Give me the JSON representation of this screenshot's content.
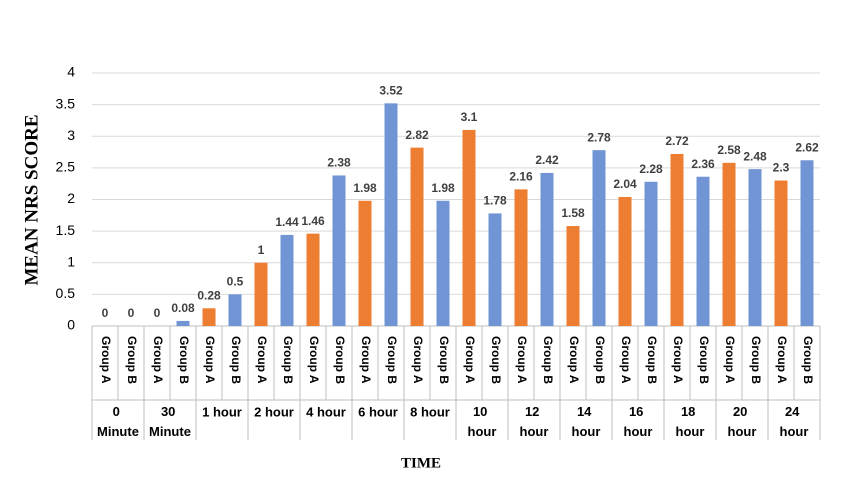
{
  "chart_data": {
    "type": "bar",
    "x_label": "TIME",
    "y_label": "MEAN NRS SCORE",
    "categories": [
      "0 Minute",
      "30 Minute",
      "1 hour",
      "2 hour",
      "4 hour",
      "6 hour",
      "8 hour",
      "10 hour",
      "12 hour",
      "14 hour",
      "16 hour",
      "18 hour",
      "20 hour",
      "24 hour"
    ],
    "series": [
      {
        "name": "Group A",
        "color": "#ed7d31",
        "values": [
          0,
          0,
          0.28,
          1,
          1.46,
          1.98,
          2.82,
          3.1,
          2.16,
          1.58,
          2.04,
          2.72,
          2.58,
          2.3
        ]
      },
      {
        "name": "Group B",
        "color": "#7094d4",
        "values": [
          0,
          0.08,
          0.5,
          1.44,
          2.38,
          3.52,
          1.98,
          1.78,
          2.42,
          2.78,
          2.28,
          2.36,
          2.48,
          2.62
        ]
      }
    ],
    "ylim": [
      0,
      4
    ],
    "yticks": [
      0,
      0.5,
      1,
      1.5,
      2,
      2.5,
      3,
      3.5,
      4
    ],
    "grid": true
  }
}
